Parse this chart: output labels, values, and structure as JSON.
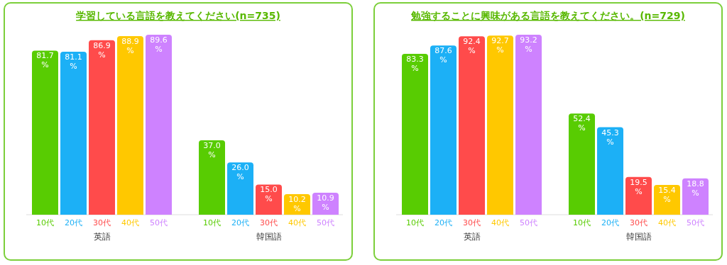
{
  "chart_data": [
    {
      "type": "bar",
      "title": "学習している言語を教えてください(n=735)",
      "categories": [
        "英語",
        "韓国語"
      ],
      "series": [
        {
          "name": "10代",
          "color": "#58cc02",
          "values": [
            81.7,
            37.0
          ],
          "value_labels": [
            "81.7\n%",
            "37.0\n%"
          ]
        },
        {
          "name": "20代",
          "color": "#1cb0f6",
          "values": [
            81.1,
            26.0
          ],
          "value_labels": [
            "81.1\n%",
            "26.0\n%"
          ]
        },
        {
          "name": "30代",
          "color": "#ff4b4b",
          "values": [
            86.9,
            15.0
          ],
          "value_labels": [
            "86.9\n%",
            "15.0\n%"
          ]
        },
        {
          "name": "40代",
          "color": "#ffc800",
          "values": [
            88.9,
            10.2
          ],
          "value_labels": [
            "88.9\n%",
            "10.2\n%"
          ]
        },
        {
          "name": "50代",
          "color": "#ce82ff",
          "values": [
            89.6,
            10.9
          ],
          "value_labels": [
            "89.6\n%",
            "10.9\n%"
          ]
        }
      ]
    },
    {
      "type": "bar",
      "title": "勉強することに興味がある言語を教えてください。(n=729)",
      "categories": [
        "英語",
        "韓国語"
      ],
      "series": [
        {
          "name": "10代",
          "color": "#58cc02",
          "values": [
            83.3,
            52.4
          ],
          "value_labels": [
            "83.3\n%",
            "52.4\n%"
          ]
        },
        {
          "name": "20代",
          "color": "#1cb0f6",
          "values": [
            87.6,
            45.3
          ],
          "value_labels": [
            "87.6\n%",
            "45.3\n%"
          ]
        },
        {
          "name": "30代",
          "color": "#ff4b4b",
          "values": [
            92.4,
            19.5
          ],
          "value_labels": [
            "92.4\n%",
            "19.5\n%"
          ]
        },
        {
          "name": "40代",
          "color": "#ffc800",
          "values": [
            92.7,
            15.4
          ],
          "value_labels": [
            "92.7\n%",
            "15.4\n%"
          ]
        },
        {
          "name": "50代",
          "color": "#ce82ff",
          "values": [
            93.2,
            18.8
          ],
          "value_labels": [
            "93.2\n%",
            "18.8\n%"
          ]
        }
      ]
    }
  ]
}
